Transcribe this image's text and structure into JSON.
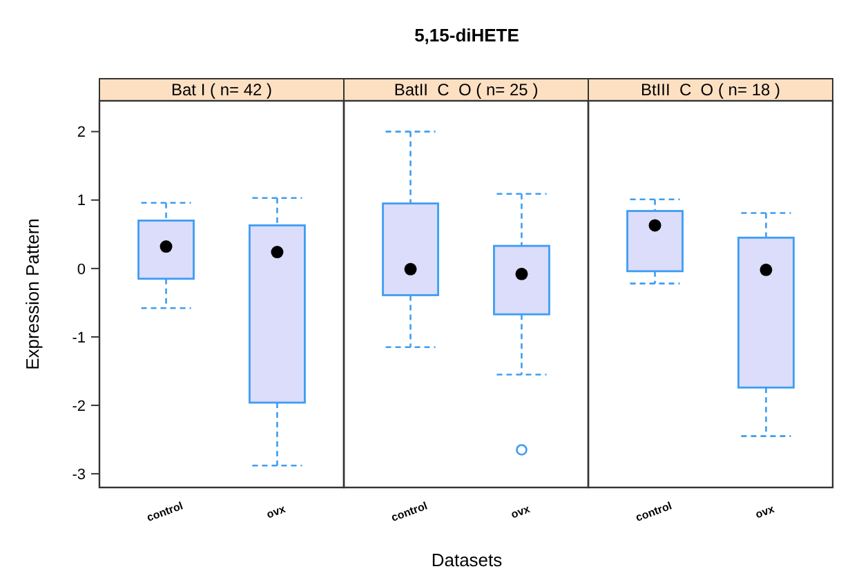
{
  "chart_data": [
    {
      "type": "box",
      "subtitle": "Bat I ( n= 42 )",
      "ylabel": "Expression Pattern",
      "categories": [
        "control",
        "ovx"
      ],
      "ylim": [
        -3.2,
        2.45
      ],
      "yticks": [
        -3,
        -2,
        -1,
        0,
        1,
        2
      ],
      "grid": false,
      "series": [
        {
          "color": "#3d9df3",
          "boxes": [
            {
              "low": -0.58,
              "q1": -0.15,
              "median": 0.32,
              "q3": 0.7,
              "high": 0.96
            },
            {
              "low": -2.88,
              "q1": -1.96,
              "median": 0.24,
              "q3": 0.63,
              "high": 1.03
            }
          ]
        }
      ]
    },
    {
      "type": "box",
      "title": "5,15-diHETE",
      "subtitle": "BatII  C  O ( n= 25 )",
      "xlabel": "Datasets",
      "categories": [
        "control",
        "ovx"
      ],
      "ylim": [
        -3.2,
        2.45
      ],
      "tick_labels": "x",
      "grid": false,
      "series": [
        {
          "color": "#3d9df3",
          "boxes": [
            {
              "low": -1.15,
              "q1": -0.39,
              "median": -0.01,
              "q3": 0.95,
              "high": 2.0
            },
            {
              "low": -1.55,
              "q1": -0.67,
              "median": -0.08,
              "q3": 0.33,
              "high": 1.09,
              "outliers": [
                -2.65
              ]
            }
          ]
        }
      ]
    },
    {
      "type": "box",
      "subtitle": "BtIII  C  O ( n= 18 )",
      "categories": [
        "control",
        "ovx"
      ],
      "ylim": [
        -3.2,
        2.45
      ],
      "tick_labels": "x",
      "grid": false,
      "series": [
        {
          "color": "#3d9df3",
          "boxes": [
            {
              "low": -0.22,
              "q1": -0.04,
              "median": 0.63,
              "q3": 0.84,
              "high": 1.01
            },
            {
              "low": -2.45,
              "q1": -1.74,
              "median": -0.02,
              "q3": 0.45,
              "high": 0.81
            }
          ]
        }
      ]
    }
  ]
}
